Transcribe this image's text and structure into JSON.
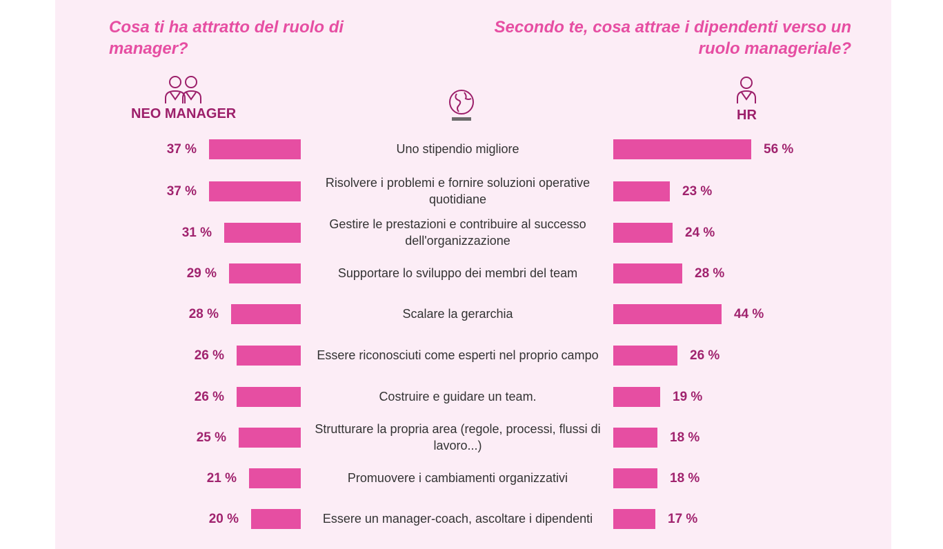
{
  "header": {
    "left_question": "Cosa ti ha attratto del ruolo di manager?",
    "right_question": "Secondo te, cosa attrae i dipendenti verso un ruolo manageriale?",
    "left_group_label": "NEO MANAGER",
    "right_group_label": "HR",
    "left_icon": "two-persons-icon",
    "center_icon": "globe-icon",
    "right_icon": "person-icon"
  },
  "colors": {
    "bar": "#e64ea2",
    "value_text": "#a0236e",
    "question": "#e64ea2",
    "background": "#fcedf6"
  },
  "chart_data": {
    "type": "bar",
    "orientation": "horizontal-butterfly",
    "unit": "%",
    "categories": [
      "Uno stipendio migliore",
      "Risolvere i problemi e fornire soluzioni operative quotidiane",
      "Gestire le prestazioni e contribuire al successo dell'organizzazione",
      "Supportare lo sviluppo dei membri del team",
      "Scalare la gerarchia",
      "Essere riconosciuti come esperti nel proprio campo",
      "Costruire e guidare un team.",
      "Strutturare la propria area (regole, processi, flussi di lavoro...)",
      "Promuovere i cambiamenti organizzativi",
      "Essere un manager-coach, ascoltare i dipendenti"
    ],
    "series": [
      {
        "name": "NEO MANAGER",
        "values": [
          37,
          37,
          31,
          29,
          28,
          26,
          26,
          25,
          21,
          20
        ],
        "labels": [
          "37 %",
          "37 %",
          "31 %",
          "29 %",
          "28 %",
          "26 %",
          "26 %",
          "25 %",
          "21 %",
          "20 %"
        ]
      },
      {
        "name": "HR",
        "values": [
          56,
          23,
          24,
          28,
          44,
          26,
          19,
          18,
          18,
          17
        ],
        "labels": [
          "56 %",
          "23 %",
          "24 %",
          "28 %",
          "44 %",
          "26 %",
          "19 %",
          "18 %",
          "18 %",
          "17 %"
        ]
      }
    ]
  }
}
